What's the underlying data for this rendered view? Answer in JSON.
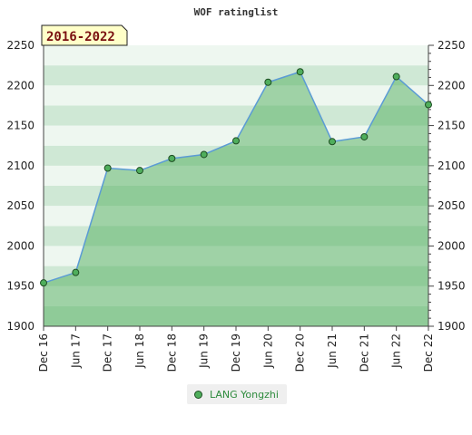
{
  "title": "WOF ratinglist",
  "badge": "2016-2022",
  "colors": {
    "band_light": "#eef7f0",
    "band_mid": "#cfe8d5",
    "area_fill": "#4fae5c",
    "line": "#5b9bd5",
    "marker": "#4fae5c"
  },
  "chart_data": {
    "type": "area",
    "title": "WOF ratinglist",
    "xlabel": "",
    "ylabel": "",
    "ylim": [
      1900,
      2250
    ],
    "yticks": [
      "1900",
      "1950",
      "2000",
      "2050",
      "2100",
      "2150",
      "2200",
      "2250"
    ],
    "categories": [
      "Dec 16",
      "Jun 17",
      "Dec 17",
      "Jun 18",
      "Dec 18",
      "Jun 19",
      "Dec 19",
      "Jun 20",
      "Dec 20",
      "Jun 21",
      "Dec 21",
      "Jun 22",
      "Dec 22"
    ],
    "series": [
      {
        "name": "LANG Yongzhi",
        "values": [
          1954,
          1967,
          2097,
          2094,
          2109,
          2114,
          2131,
          2204,
          2217,
          2130,
          2136,
          2211,
          2176
        ]
      }
    ],
    "grid": true,
    "legend": "bottom"
  }
}
